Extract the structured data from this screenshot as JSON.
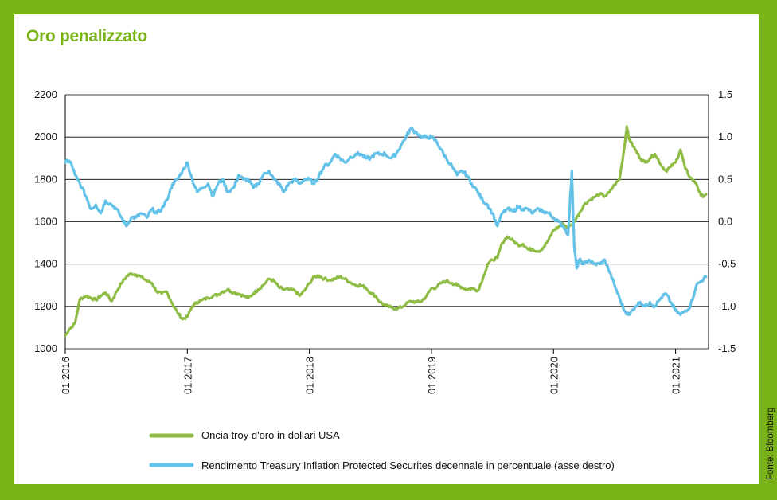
{
  "colors": {
    "frame": "#7ab317",
    "title": "#7ab317",
    "gold_series": "#8fbc45",
    "tips_series": "#64c2e8",
    "gridline": "#000000"
  },
  "source_text": "Fonte: Bloomberg",
  "chart_data": {
    "type": "line",
    "title": "Oro penalizzato",
    "xlabel": "",
    "ylabel": "",
    "x_ticks": [
      "01.2016",
      "01.2017",
      "01.2018",
      "01.2019",
      "01.2020",
      "01.2021"
    ],
    "x_tick_values": [
      2016.0,
      2017.0,
      2018.0,
      2019.0,
      2020.0,
      2021.0
    ],
    "xlim": [
      2016.0,
      2021.27
    ],
    "y_left": {
      "ylim": [
        1000,
        2200
      ],
      "ticks": [
        "1000",
        "1200",
        "1400",
        "1600",
        "1800",
        "2000",
        "2200"
      ],
      "tick_values": [
        1000,
        1200,
        1400,
        1600,
        1800,
        2000,
        2200
      ]
    },
    "y_right": {
      "ylim": [
        -1.5,
        1.5
      ],
      "ticks": [
        "-1.5",
        "-1.0",
        "-0.5",
        "0.0",
        "0.5",
        "1.0",
        "1.5"
      ],
      "tick_values": [
        -1.5,
        -1.0,
        -0.5,
        0.0,
        0.5,
        1.0,
        1.5
      ]
    },
    "grid": true,
    "legend_position": "bottom",
    "series": [
      {
        "name": "Oncia troy d'oro in dollari USA",
        "axis": "left",
        "x": [
          2016.0,
          2016.03,
          2016.08,
          2016.12,
          2016.17,
          2016.21,
          2016.25,
          2016.29,
          2016.33,
          2016.38,
          2016.42,
          2016.46,
          2016.5,
          2016.54,
          2016.58,
          2016.62,
          2016.67,
          2016.71,
          2016.75,
          2016.79,
          2016.83,
          2016.88,
          2016.92,
          2016.96,
          2017.0,
          2017.04,
          2017.08,
          2017.12,
          2017.17,
          2017.21,
          2017.25,
          2017.29,
          2017.33,
          2017.38,
          2017.42,
          2017.46,
          2017.5,
          2017.54,
          2017.58,
          2017.62,
          2017.67,
          2017.71,
          2017.75,
          2017.79,
          2017.83,
          2017.88,
          2017.92,
          2017.96,
          2018.0,
          2018.04,
          2018.08,
          2018.12,
          2018.17,
          2018.21,
          2018.25,
          2018.29,
          2018.33,
          2018.38,
          2018.42,
          2018.46,
          2018.5,
          2018.54,
          2018.58,
          2018.62,
          2018.67,
          2018.71,
          2018.75,
          2018.79,
          2018.83,
          2018.88,
          2018.92,
          2018.96,
          2019.0,
          2019.04,
          2019.08,
          2019.12,
          2019.17,
          2019.21,
          2019.25,
          2019.29,
          2019.33,
          2019.38,
          2019.42,
          2019.46,
          2019.5,
          2019.54,
          2019.58,
          2019.62,
          2019.67,
          2019.71,
          2019.75,
          2019.79,
          2019.83,
          2019.88,
          2019.92,
          2019.96,
          2020.0,
          2020.04,
          2020.08,
          2020.12,
          2020.17,
          2020.21,
          2020.25,
          2020.29,
          2020.33,
          2020.38,
          2020.42,
          2020.46,
          2020.5,
          2020.54,
          2020.58,
          2020.6,
          2020.62,
          2020.67,
          2020.71,
          2020.75,
          2020.79,
          2020.83,
          2020.88,
          2020.92,
          2020.96,
          2021.0,
          2021.04,
          2021.08,
          2021.12,
          2021.17,
          2021.21,
          2021.25
        ],
        "values": [
          1062,
          1090,
          1120,
          1235,
          1250,
          1240,
          1230,
          1250,
          1265,
          1225,
          1270,
          1310,
          1340,
          1355,
          1350,
          1340,
          1320,
          1310,
          1270,
          1260,
          1270,
          1210,
          1170,
          1140,
          1150,
          1200,
          1220,
          1230,
          1240,
          1250,
          1255,
          1270,
          1280,
          1265,
          1260,
          1250,
          1240,
          1260,
          1280,
          1300,
          1330,
          1320,
          1290,
          1280,
          1280,
          1275,
          1250,
          1275,
          1310,
          1340,
          1345,
          1330,
          1325,
          1330,
          1340,
          1330,
          1315,
          1300,
          1300,
          1290,
          1265,
          1250,
          1220,
          1205,
          1195,
          1190,
          1195,
          1210,
          1225,
          1220,
          1225,
          1250,
          1285,
          1290,
          1310,
          1320,
          1310,
          1300,
          1290,
          1280,
          1285,
          1275,
          1330,
          1400,
          1420,
          1430,
          1500,
          1530,
          1510,
          1490,
          1495,
          1470,
          1470,
          1460,
          1480,
          1515,
          1560,
          1575,
          1590,
          1570,
          1600,
          1640,
          1680,
          1700,
          1715,
          1730,
          1720,
          1740,
          1775,
          1800,
          1950,
          2050,
          1990,
          1940,
          1900,
          1880,
          1900,
          1920,
          1870,
          1840,
          1860,
          1880,
          1940,
          1850,
          1810,
          1780,
          1720,
          1730
        ]
      },
      {
        "name": "Rendimento Treasury Inflation Protected Securites decennale in percentuale (asse destro)",
        "axis": "right",
        "x": [
          2016.0,
          2016.03,
          2016.05,
          2016.08,
          2016.12,
          2016.17,
          2016.21,
          2016.25,
          2016.29,
          2016.33,
          2016.38,
          2016.42,
          2016.46,
          2016.5,
          2016.54,
          2016.58,
          2016.62,
          2016.67,
          2016.71,
          2016.75,
          2016.79,
          2016.83,
          2016.88,
          2016.92,
          2016.96,
          2017.0,
          2017.04,
          2017.08,
          2017.12,
          2017.17,
          2017.21,
          2017.25,
          2017.29,
          2017.33,
          2017.38,
          2017.42,
          2017.46,
          2017.5,
          2017.54,
          2017.58,
          2017.62,
          2017.67,
          2017.71,
          2017.75,
          2017.79,
          2017.83,
          2017.88,
          2017.92,
          2017.96,
          2018.0,
          2018.04,
          2018.08,
          2018.12,
          2018.17,
          2018.21,
          2018.25,
          2018.29,
          2018.33,
          2018.38,
          2018.42,
          2018.46,
          2018.5,
          2018.54,
          2018.58,
          2018.62,
          2018.67,
          2018.71,
          2018.75,
          2018.79,
          2018.83,
          2018.88,
          2018.92,
          2018.96,
          2019.0,
          2019.04,
          2019.08,
          2019.12,
          2019.17,
          2019.21,
          2019.25,
          2019.29,
          2019.33,
          2019.38,
          2019.42,
          2019.46,
          2019.5,
          2019.54,
          2019.58,
          2019.62,
          2019.67,
          2019.71,
          2019.75,
          2019.79,
          2019.83,
          2019.88,
          2019.92,
          2019.96,
          2020.0,
          2020.04,
          2020.08,
          2020.12,
          2020.15,
          2020.17,
          2020.19,
          2020.21,
          2020.25,
          2020.29,
          2020.33,
          2020.38,
          2020.42,
          2020.46,
          2020.5,
          2020.54,
          2020.58,
          2020.62,
          2020.67,
          2020.71,
          2020.75,
          2020.79,
          2020.83,
          2020.88,
          2020.92,
          2020.96,
          2021.0,
          2021.04,
          2021.08,
          2021.12,
          2021.17,
          2021.21,
          2021.25
        ],
        "values": [
          0.7,
          0.72,
          0.68,
          0.55,
          0.45,
          0.3,
          0.15,
          0.2,
          0.1,
          0.25,
          0.2,
          0.15,
          0.05,
          -0.05,
          0.05,
          0.05,
          0.1,
          0.05,
          0.15,
          0.1,
          0.15,
          0.25,
          0.45,
          0.5,
          0.6,
          0.7,
          0.5,
          0.35,
          0.4,
          0.45,
          0.3,
          0.45,
          0.5,
          0.35,
          0.4,
          0.55,
          0.5,
          0.5,
          0.4,
          0.45,
          0.55,
          0.6,
          0.5,
          0.45,
          0.35,
          0.45,
          0.5,
          0.45,
          0.5,
          0.5,
          0.45,
          0.55,
          0.65,
          0.7,
          0.8,
          0.75,
          0.7,
          0.75,
          0.8,
          0.8,
          0.75,
          0.75,
          0.8,
          0.8,
          0.8,
          0.75,
          0.8,
          0.9,
          1.0,
          1.1,
          1.05,
          1.0,
          1.0,
          1.0,
          0.95,
          0.85,
          0.75,
          0.65,
          0.55,
          0.6,
          0.55,
          0.45,
          0.35,
          0.25,
          0.2,
          0.1,
          -0.05,
          0.1,
          0.15,
          0.12,
          0.18,
          0.15,
          0.15,
          0.1,
          0.15,
          0.12,
          0.1,
          0.05,
          0.0,
          -0.05,
          -0.15,
          0.6,
          -0.3,
          -0.55,
          -0.45,
          -0.5,
          -0.45,
          -0.5,
          -0.5,
          -0.45,
          -0.6,
          -0.75,
          -0.9,
          -1.05,
          -1.1,
          -1.0,
          -0.95,
          -1.0,
          -0.95,
          -1.0,
          -0.9,
          -0.85,
          -0.95,
          -1.05,
          -1.1,
          -1.05,
          -1.0,
          -0.75,
          -0.7,
          -0.65
        ]
      }
    ]
  }
}
